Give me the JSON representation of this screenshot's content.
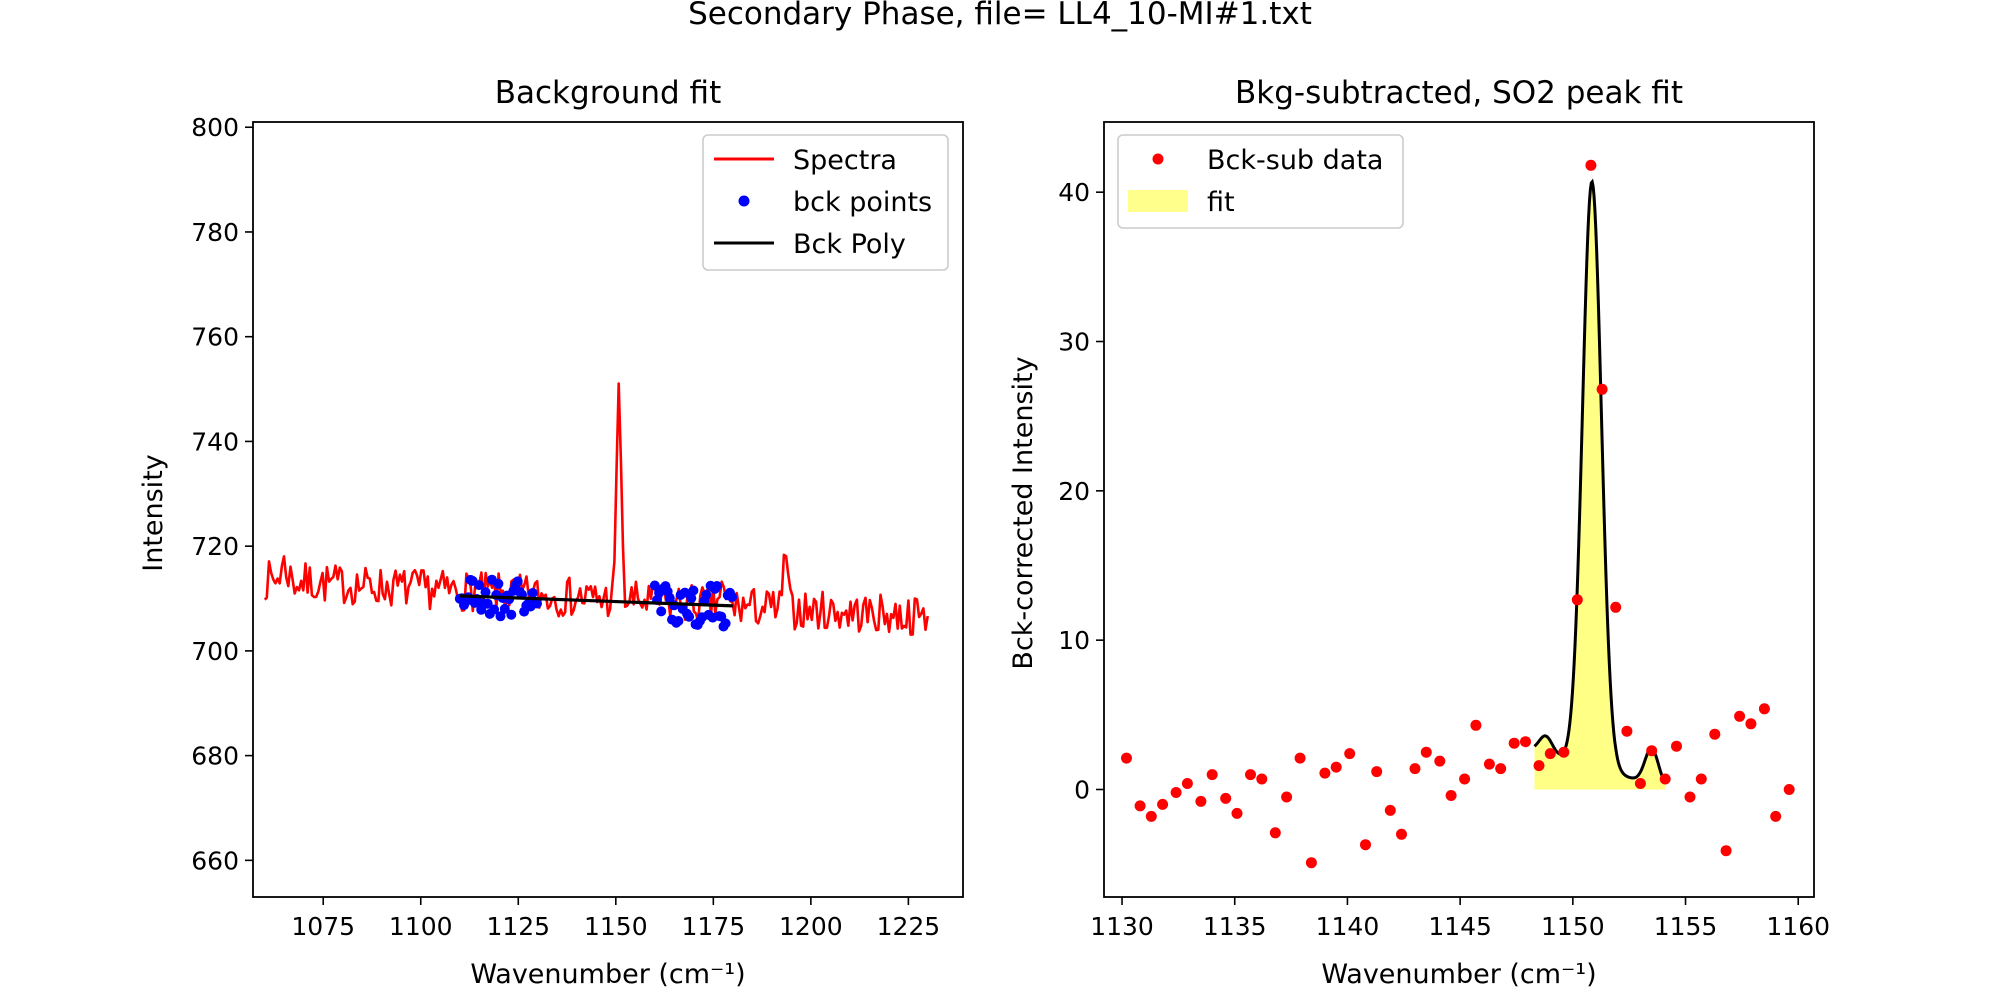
{
  "figure": {
    "suptitle": "Secondary Phase, file= LL4_10-MI#1.txt"
  },
  "chart_data": [
    {
      "type": "line",
      "title": "Background fit",
      "xlabel": "Wavenumber (cm⁻¹)",
      "ylabel": "Intensity",
      "xlim": [
        1057,
        1239
      ],
      "ylim": [
        653,
        801
      ],
      "xticks": [
        1075,
        1100,
        1125,
        1150,
        1175,
        1200,
        1225
      ],
      "yticks": [
        660,
        680,
        700,
        720,
        740,
        760,
        780,
        800
      ],
      "grid": false,
      "legend": {
        "location": "top-right",
        "entries": [
          "Spectra",
          "bck points",
          "Bck Poly"
        ]
      },
      "colors": {
        "spectra": "#ff0000",
        "bck_points": "#0000ff",
        "bck_poly": "#000000"
      },
      "series": [
        {
          "name": "Spectra",
          "style": "line",
          "x_range": [
            1060,
            1230
          ],
          "baseline_endpoints": [
            [
              1060,
              713.5
            ],
            [
              1230,
              706.5
            ]
          ],
          "noise_amplitude": 3.8,
          "peaks": [
            {
              "x": 1150.8,
              "height": 42,
              "width": 0.55
            },
            {
              "x": 1193.5,
              "height": 12,
              "width": 0.45
            },
            {
              "x": 1065.0,
              "height": 3,
              "width": 1.0
            },
            {
              "x": 1177.0,
              "height": 3,
              "width": 0.6
            }
          ]
        },
        {
          "name": "bck points",
          "style": "scatter",
          "ranges": [
            [
              1110,
              1130
            ],
            [
              1160,
              1180
            ]
          ],
          "baseline_endpoints": [
            [
              1110,
              710.5
            ],
            [
              1180,
              708.5
            ]
          ],
          "noise_amplitude": 4.0
        },
        {
          "name": "Bck Poly",
          "style": "line",
          "x": [
            1110,
            1180
          ],
          "y": [
            710.5,
            708.6
          ]
        }
      ]
    },
    {
      "type": "scatter",
      "title": "Bkg-subtracted, SO2 peak fit",
      "xlabel": "Wavenumber (cm⁻¹)",
      "ylabel": "Bck-corrected Intensity",
      "xlim": [
        1129.2,
        1160.7
      ],
      "ylim": [
        -7.2,
        44.7
      ],
      "xticks": [
        1130,
        1135,
        1140,
        1145,
        1150,
        1155,
        1160
      ],
      "yticks": [
        0,
        10,
        20,
        30,
        40
      ],
      "grid": false,
      "legend": {
        "location": "top-left",
        "entries": [
          "Bck-sub data",
          "fit"
        ]
      },
      "colors": {
        "data": "#ff0000",
        "fit_line": "#000000",
        "fit_fill": "#ffff80"
      },
      "series": [
        {
          "name": "Bck-sub data",
          "style": "scatter",
          "points": [
            [
              1130.2,
              2.1
            ],
            [
              1130.8,
              -1.1
            ],
            [
              1131.3,
              -1.8
            ],
            [
              1131.8,
              -1.0
            ],
            [
              1132.4,
              -0.2
            ],
            [
              1132.9,
              0.4
            ],
            [
              1133.5,
              -0.8
            ],
            [
              1134.0,
              1.0
            ],
            [
              1134.6,
              -0.6
            ],
            [
              1135.1,
              -1.6
            ],
            [
              1135.7,
              1.0
            ],
            [
              1136.2,
              0.7
            ],
            [
              1136.8,
              -2.9
            ],
            [
              1137.3,
              -0.5
            ],
            [
              1137.9,
              2.1
            ],
            [
              1138.4,
              -4.9
            ],
            [
              1139.0,
              1.1
            ],
            [
              1139.5,
              1.5
            ],
            [
              1140.1,
              2.4
            ],
            [
              1140.8,
              -3.7
            ],
            [
              1141.3,
              1.2
            ],
            [
              1141.9,
              -1.4
            ],
            [
              1142.4,
              -3.0
            ],
            [
              1143.0,
              1.4
            ],
            [
              1143.5,
              2.5
            ],
            [
              1144.1,
              1.9
            ],
            [
              1144.6,
              -0.4
            ],
            [
              1145.2,
              0.7
            ],
            [
              1145.7,
              4.3
            ],
            [
              1146.3,
              1.7
            ],
            [
              1146.8,
              1.4
            ],
            [
              1147.4,
              3.1
            ],
            [
              1147.9,
              3.2
            ],
            [
              1148.5,
              1.6
            ],
            [
              1149.0,
              2.4
            ],
            [
              1149.6,
              2.5
            ],
            [
              1150.2,
              12.7
            ],
            [
              1150.8,
              41.8
            ],
            [
              1151.3,
              26.8
            ],
            [
              1151.9,
              12.2
            ],
            [
              1152.4,
              3.9
            ],
            [
              1153.0,
              0.4
            ],
            [
              1153.5,
              2.6
            ],
            [
              1154.1,
              0.7
            ],
            [
              1154.6,
              2.9
            ],
            [
              1155.2,
              -0.5
            ],
            [
              1155.7,
              0.7
            ],
            [
              1156.3,
              3.7
            ],
            [
              1156.8,
              -4.1
            ],
            [
              1157.4,
              4.9
            ],
            [
              1157.9,
              4.4
            ],
            [
              1158.5,
              5.4
            ],
            [
              1159.0,
              -1.8
            ],
            [
              1159.6,
              0.0
            ]
          ]
        },
        {
          "name": "fit",
          "style": "filled-line",
          "x_range": [
            1148.3,
            1154.1
          ],
          "components": [
            {
              "center": 1150.85,
              "amplitude": 39.2,
              "sigma": 0.42
            },
            {
              "center": 1153.5,
              "amplitude": 2.4,
              "sigma": 0.3
            },
            {
              "center": 1148.8,
              "amplitude": 1.2,
              "sigma": 0.3
            }
          ],
          "baseline": [
            [
              1148.3,
              2.6
            ],
            [
              1154.1,
              0.1
            ]
          ]
        }
      ]
    }
  ]
}
